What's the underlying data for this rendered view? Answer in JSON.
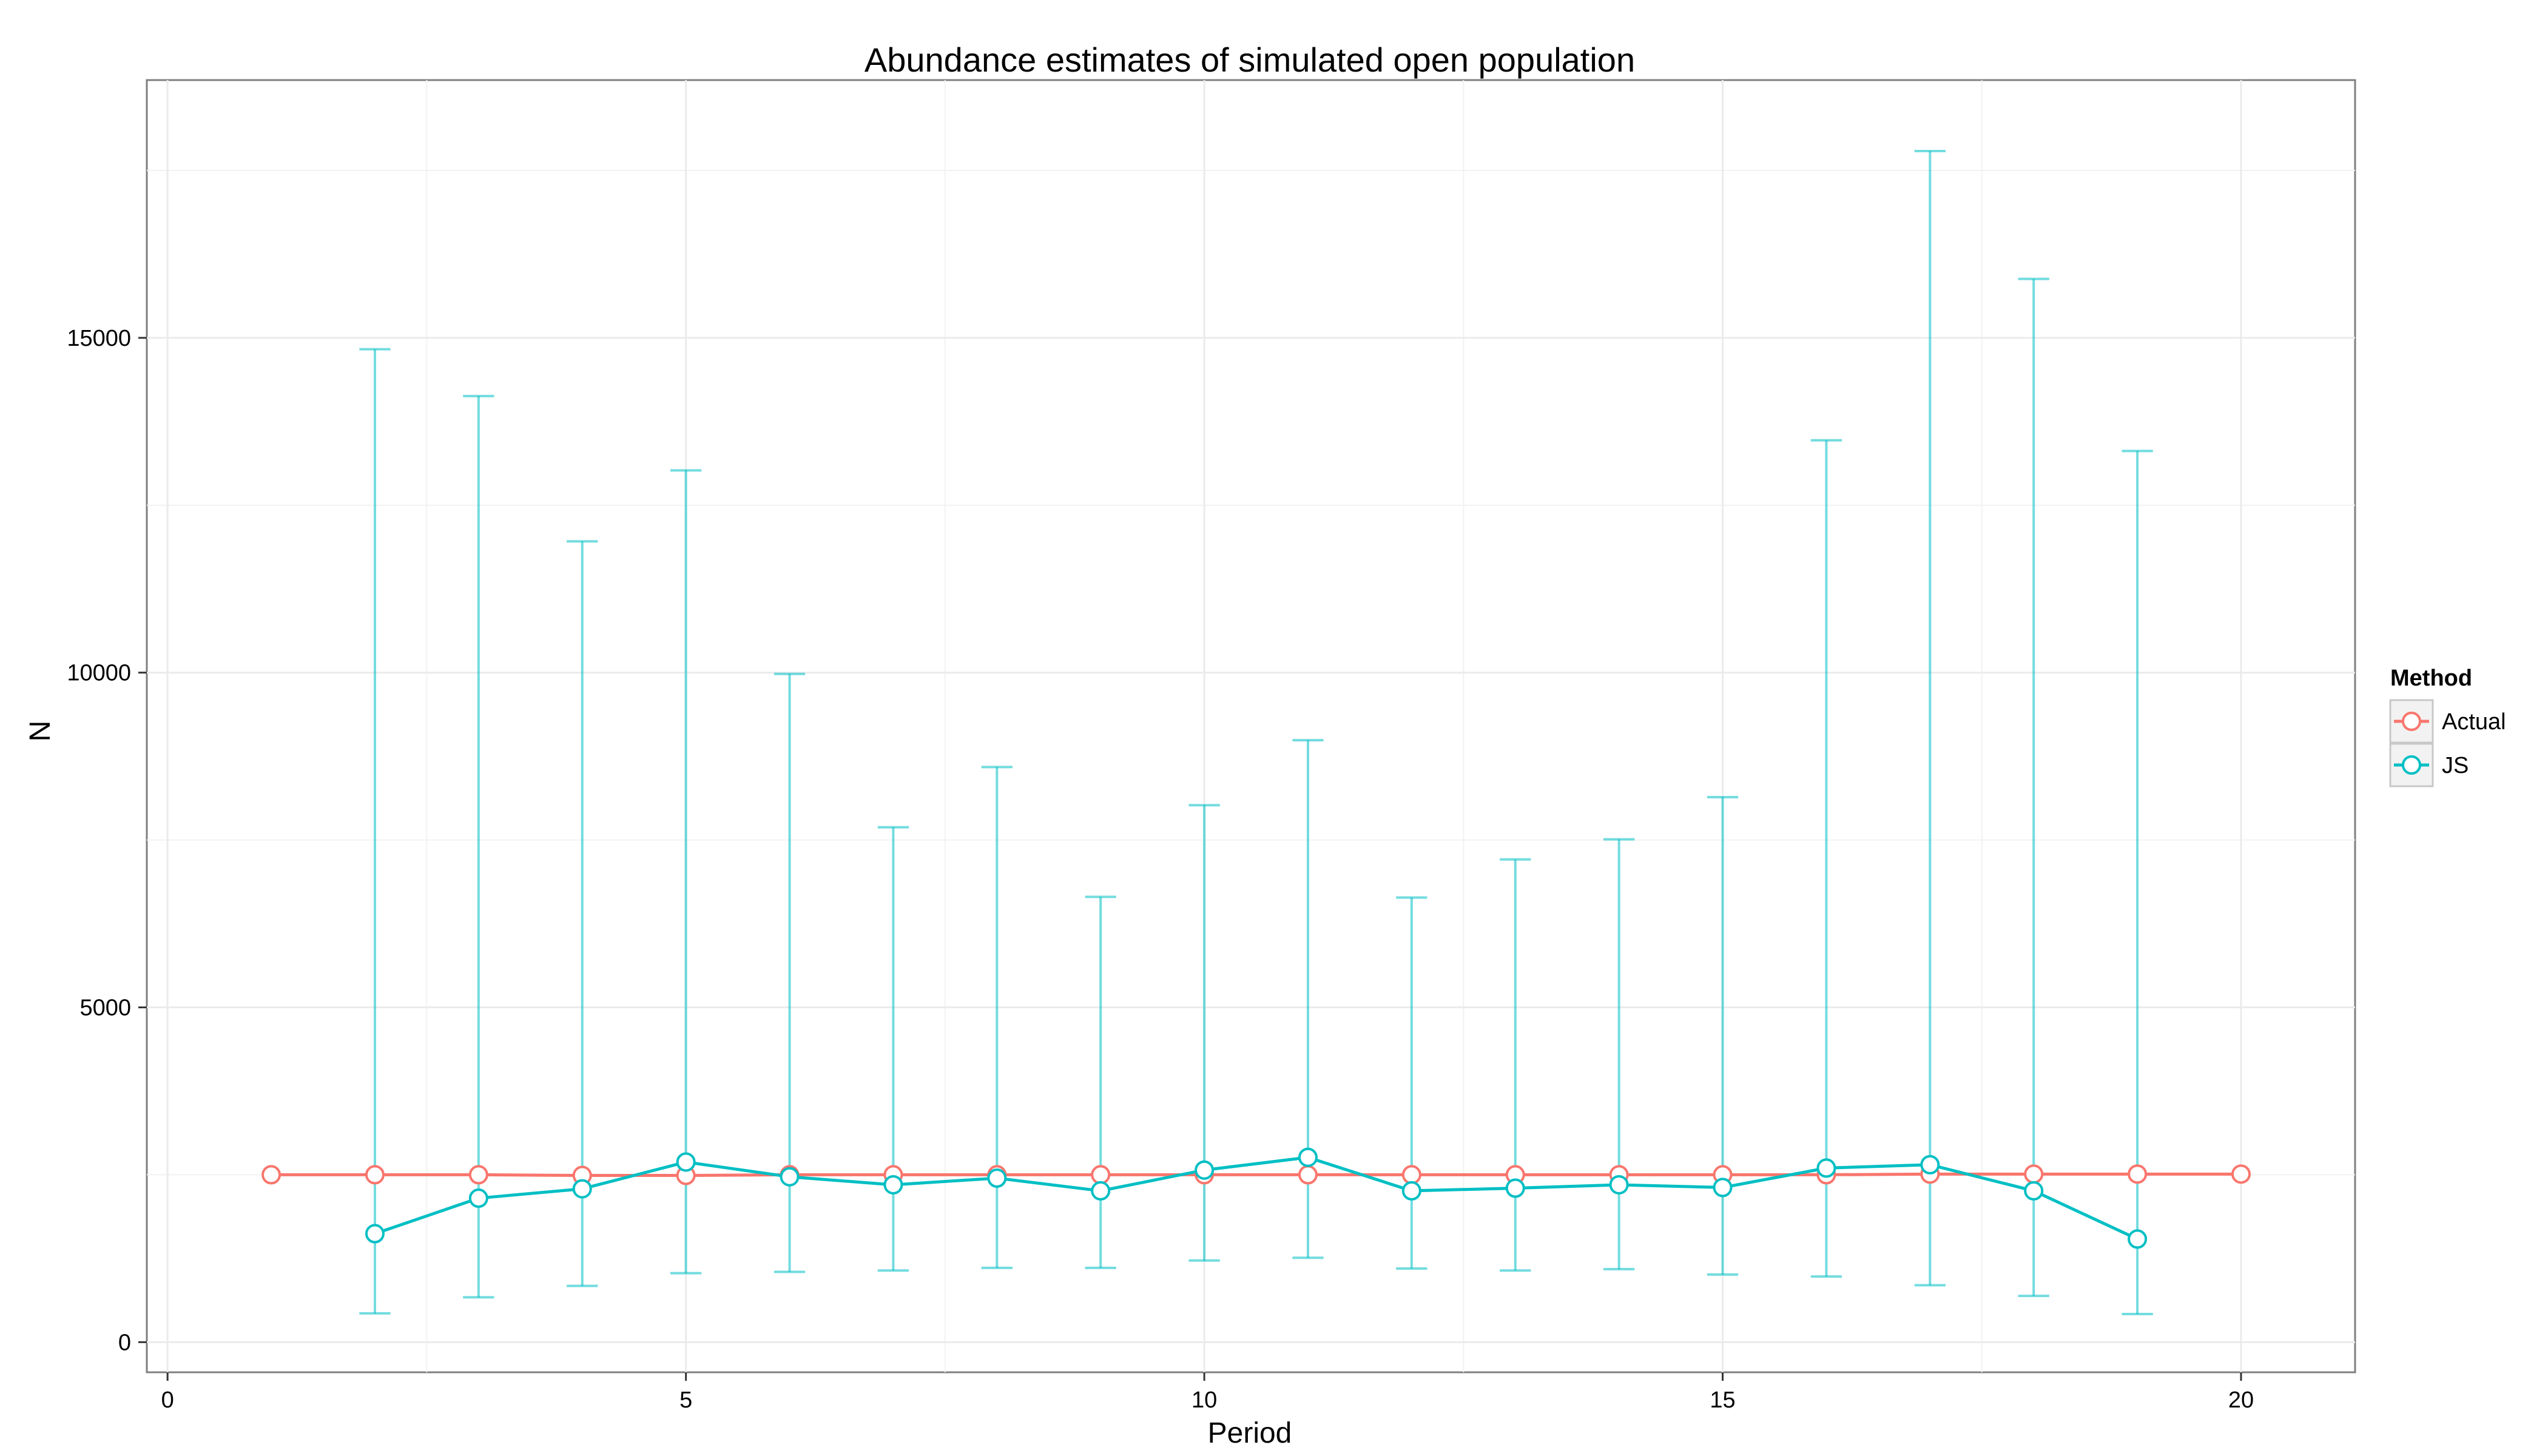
{
  "chart_data": {
    "type": "line",
    "title": "Abundance estimates of simulated open population",
    "xlabel": "Period",
    "ylabel": "N",
    "xlim": [
      -0.2,
      21.1
    ],
    "ylim": [
      -450,
      18850
    ],
    "xticks": [
      0,
      5,
      10,
      15,
      20
    ],
    "xtick_labels": [
      "0",
      "5",
      "10",
      "15",
      "20"
    ],
    "yticks": [
      0,
      5000,
      10000,
      15000
    ],
    "ytick_labels": [
      "0",
      "5000",
      "10000",
      "15000"
    ],
    "grid": true,
    "legend": {
      "title": "Method",
      "placement": "right"
    },
    "series": [
      {
        "name": "Actual",
        "color": "#F8766D",
        "x": [
          1,
          2,
          3,
          4,
          5,
          6,
          7,
          8,
          9,
          10,
          11,
          12,
          13,
          14,
          15,
          16,
          17,
          18,
          19,
          20
        ],
        "y": [
          2500,
          2500,
          2500,
          2490,
          2490,
          2500,
          2500,
          2500,
          2500,
          2500,
          2500,
          2500,
          2500,
          2500,
          2500,
          2500,
          2510,
          2510,
          2510,
          2510
        ]
      },
      {
        "name": "JS",
        "color": "#00BFC4",
        "x": [
          2,
          3,
          4,
          5,
          6,
          7,
          8,
          9,
          10,
          11,
          12,
          13,
          14,
          15,
          16,
          17,
          18,
          19
        ],
        "y": [
          1620,
          2150,
          2290,
          2690,
          2470,
          2350,
          2450,
          2260,
          2570,
          2760,
          2260,
          2300,
          2350,
          2310,
          2600,
          2650,
          2260,
          1540
        ],
        "lower": [
          430,
          670,
          840,
          1030,
          1050,
          1070,
          1110,
          1110,
          1220,
          1260,
          1100,
          1070,
          1090,
          1010,
          980,
          850,
          690,
          420
        ],
        "upper": [
          14830,
          14130,
          11960,
          13020,
          9980,
          7690,
          8590,
          6650,
          8020,
          8990,
          6640,
          7210,
          7510,
          8140,
          13470,
          17790,
          15880,
          13310
        ]
      }
    ]
  }
}
